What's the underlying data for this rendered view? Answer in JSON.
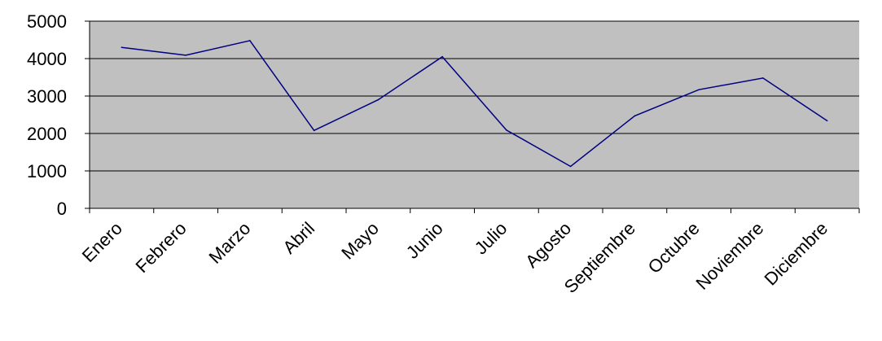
{
  "chart_data": {
    "type": "line",
    "title": "",
    "xlabel": "",
    "ylabel": "",
    "categories": [
      "Enero",
      "Febrero",
      "Marzo",
      "Abril",
      "Mayo",
      "Junio",
      "Julio",
      "Agosto",
      "Septiembre",
      "Octubre",
      "Noviembre",
      "Diciembre"
    ],
    "series": [
      {
        "values": [
          4300,
          4090,
          4480,
          2080,
          2900,
          4050,
          2090,
          1120,
          2470,
          3170,
          3480,
          2340
        ]
      }
    ],
    "ylim": [
      0,
      5000
    ],
    "yticks": [
      "0",
      "1000",
      "2000",
      "3000",
      "4000",
      "5000"
    ],
    "grid": true,
    "legend": "none",
    "colors": {
      "plot_background": "#c0c0c0",
      "line": "#000080",
      "gridline": "#000000",
      "axis": "#000000"
    }
  }
}
